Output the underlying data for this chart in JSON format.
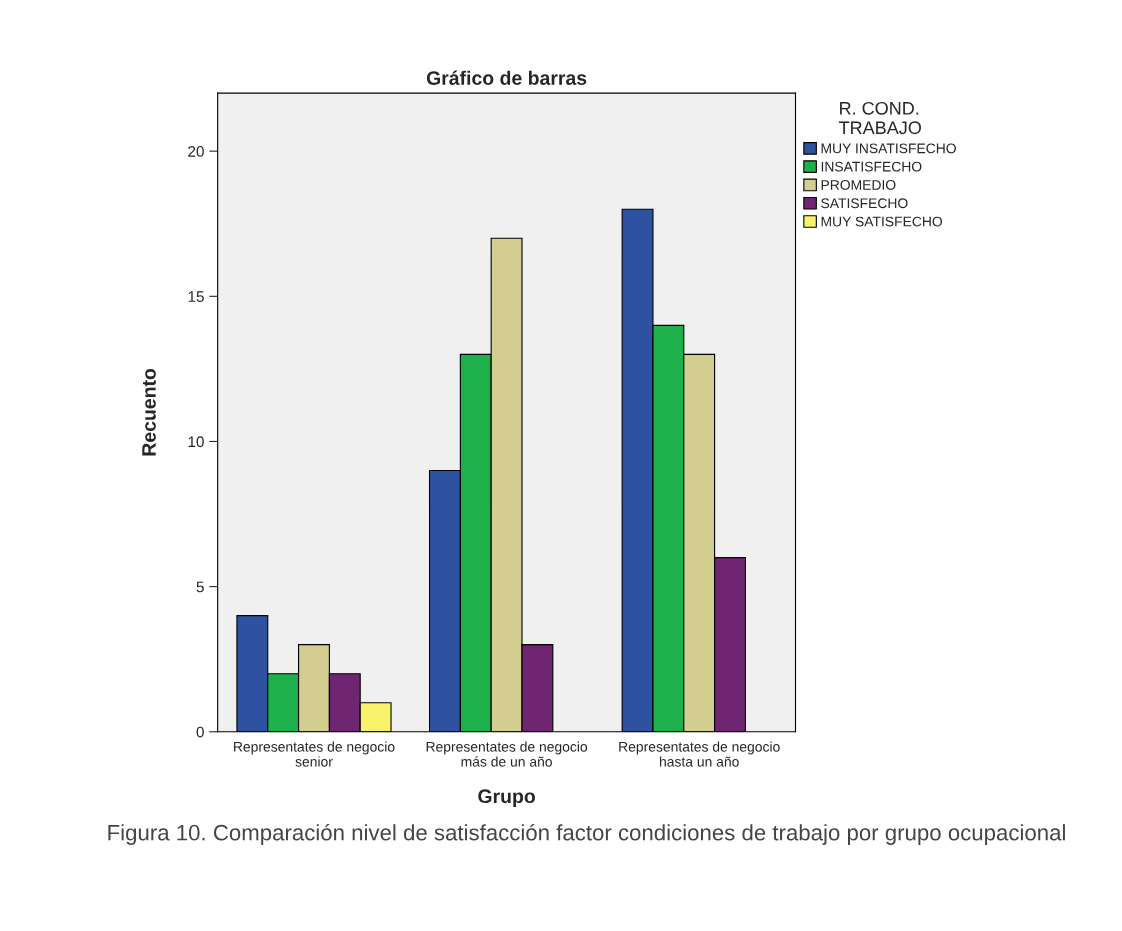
{
  "chart_data": {
    "type": "bar",
    "title": "Gráfico de barras",
    "xlabel": "Grupo",
    "ylabel": "Recuento",
    "legend_title": "R. COND.\nTRABAJO",
    "categories": [
      "Representates de negocio\nsenior",
      "Representates de negocio\nmás de un año",
      "Representates de negocio\nhasta un año"
    ],
    "series": [
      {
        "name": "MUY INSATISFECHO",
        "color": "#2f52a0",
        "values": [
          4,
          9,
          18
        ]
      },
      {
        "name": "INSATISFECHO",
        "color": "#1db04b",
        "values": [
          2,
          13,
          14
        ]
      },
      {
        "name": "PROMEDIO",
        "color": "#d3cd8f",
        "values": [
          3,
          17,
          13
        ]
      },
      {
        "name": "SATISFECHO",
        "color": "#6f2571",
        "values": [
          2,
          3,
          6
        ]
      },
      {
        "name": "MUY SATISFECHO",
        "color": "#f7f26a",
        "values": [
          1,
          null,
          null
        ]
      }
    ],
    "ylim": [
      0,
      22
    ],
    "yticks": [
      0,
      5,
      10,
      15,
      20
    ],
    "grid": false,
    "legend": "right",
    "annotations": [
      "Figura 10. Comparación nivel de satisfacción factor condiciones de trabajo por grupo ocupacional"
    ]
  }
}
